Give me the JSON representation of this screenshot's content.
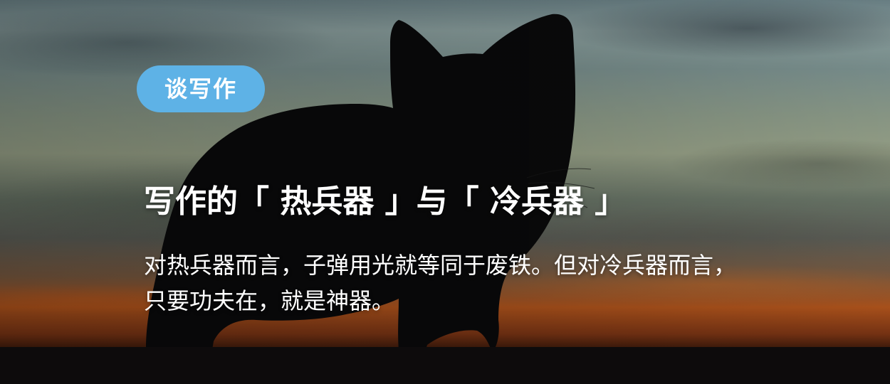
{
  "banner": {
    "tag": "谈写作",
    "title": "写作的「 热兵器 」与「 冷兵器 」",
    "description": "对热兵器而言，子弹用光就等同于废铁。但对冷兵器而言，只要功夫在，就是神器。"
  },
  "colors": {
    "tag_background": "#5eb2e6",
    "text": "#ffffff",
    "silhouette": "#0a0a0b"
  },
  "image": {
    "subject_icon": "cat-silhouette"
  }
}
